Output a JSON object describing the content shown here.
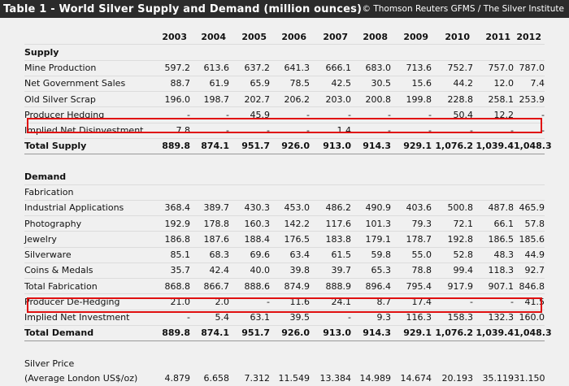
{
  "header": {
    "title": "Table 1 - World Silver Supply and Demand (million ounces)",
    "source": "© Thomson Reuters GFMS / The Silver Institute"
  },
  "years": [
    "2003",
    "2004",
    "2005",
    "2006",
    "2007",
    "2008",
    "2009",
    "2010",
    "2011",
    "2012"
  ],
  "supply": {
    "heading": "Supply",
    "rows": [
      {
        "label": "Mine Production",
        "values": [
          "597.2",
          "613.6",
          "637.2",
          "641.3",
          "666.1",
          "683.0",
          "713.6",
          "752.7",
          "757.0",
          "787.0"
        ]
      },
      {
        "label": "Net Government Sales",
        "values": [
          "88.7",
          "61.9",
          "65.9",
          "78.5",
          "42.5",
          "30.5",
          "15.6",
          "44.2",
          "12.0",
          "7.4"
        ]
      },
      {
        "label": "Old Silver Scrap",
        "values": [
          "196.0",
          "198.7",
          "202.7",
          "206.2",
          "203.0",
          "200.8",
          "199.8",
          "228.8",
          "258.1",
          "253.9"
        ]
      },
      {
        "label": "Producer Hedging",
        "values": [
          "-",
          "-",
          "45.9",
          "-",
          "-",
          "-",
          "-",
          "50.4",
          "12.2",
          "-"
        ]
      },
      {
        "label": "Implied Net Disinvestment",
        "values": [
          "7.8",
          "-",
          "-",
          "-",
          "1.4",
          "-",
          "-",
          "-",
          "-",
          "-"
        ]
      }
    ],
    "total": {
      "label": "Total Supply",
      "values": [
        "889.8",
        "874.1",
        "951.7",
        "926.0",
        "913.0",
        "914.3",
        "929.1",
        "1,076.2",
        "1,039.4",
        "1,048.3"
      ]
    }
  },
  "demand": {
    "heading": "Demand",
    "fabrication_heading": "Fabrication",
    "fabrication_rows": [
      {
        "label": "Industrial Applications",
        "values": [
          "368.4",
          "389.7",
          "430.3",
          "453.0",
          "486.2",
          "490.9",
          "403.6",
          "500.8",
          "487.8",
          "465.9"
        ]
      },
      {
        "label": "Photography",
        "values": [
          "192.9",
          "178.8",
          "160.3",
          "142.2",
          "117.6",
          "101.3",
          "79.3",
          "72.1",
          "66.1",
          "57.8"
        ]
      },
      {
        "label": "Jewelry",
        "values": [
          "186.8",
          "187.6",
          "188.4",
          "176.5",
          "183.8",
          "179.1",
          "178.7",
          "192.8",
          "186.5",
          "185.6"
        ]
      },
      {
        "label": "Silverware",
        "values": [
          "85.1",
          "68.3",
          "69.6",
          "63.4",
          "61.5",
          "59.8",
          "55.0",
          "52.8",
          "48.3",
          "44.9"
        ]
      },
      {
        "label": "Coins & Medals",
        "values": [
          "35.7",
          "42.4",
          "40.0",
          "39.8",
          "39.7",
          "65.3",
          "78.8",
          "99.4",
          "118.3",
          "92.7"
        ]
      }
    ],
    "rows": [
      {
        "label": "Total Fabrication",
        "values": [
          "868.8",
          "866.7",
          "888.6",
          "874.9",
          "888.9",
          "896.4",
          "795.4",
          "917.9",
          "907.1",
          "846.8"
        ]
      },
      {
        "label": "Producer De-Hedging",
        "values": [
          "21.0",
          "2.0",
          "-",
          "11.6",
          "24.1",
          "8.7",
          "17.4",
          "-",
          "-",
          "41.5"
        ]
      },
      {
        "label": "Implied Net Investment",
        "values": [
          "-",
          "5.4",
          "63.1",
          "39.5",
          "-",
          "9.3",
          "116.3",
          "158.3",
          "132.3",
          "160.0"
        ]
      }
    ],
    "total": {
      "label": "Total Demand",
      "values": [
        "889.8",
        "874.1",
        "951.7",
        "926.0",
        "913.0",
        "914.3",
        "929.1",
        "1,076.2",
        "1,039.4",
        "1,048.3"
      ]
    }
  },
  "price": {
    "heading": "Silver Price",
    "label": "(Average London US$/oz)",
    "values": [
      "4.879",
      "6.658",
      "7.312",
      "11.549",
      "13.384",
      "14.989",
      "14.674",
      "20.193",
      "35.119",
      "31.150"
    ]
  },
  "highlight_color": "#e01010"
}
